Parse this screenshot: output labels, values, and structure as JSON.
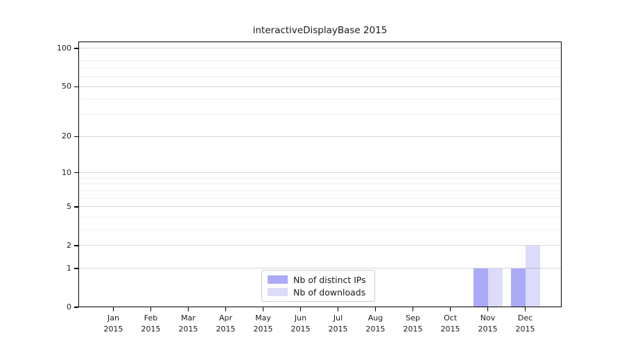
{
  "chart_data": {
    "type": "bar",
    "title": "interactiveDisplayBase 2015",
    "y_scale": "symlog(ln(1+x))",
    "y_axis": {
      "major_ticks": [
        0,
        1,
        2,
        5,
        10,
        20,
        50,
        100
      ],
      "minor_gridlines": [
        3,
        4,
        6,
        7,
        8,
        9,
        30,
        40,
        60,
        70,
        80,
        90
      ],
      "range": [
        0,
        113
      ],
      "grid": "on"
    },
    "x_axis": {
      "categories": [
        "Jan",
        "Feb",
        "Mar",
        "Apr",
        "May",
        "Jun",
        "Jul",
        "Aug",
        "Sep",
        "Oct",
        "Nov",
        "Dec"
      ],
      "year": "2015"
    },
    "series": [
      {
        "name": "Nb of distinct IPs",
        "color": "#aaaaf7",
        "values": [
          0,
          0,
          0,
          0,
          0,
          0,
          0,
          0,
          0,
          0,
          1,
          1
        ]
      },
      {
        "name": "Nb of downloads",
        "color": "#dcdcfa",
        "values": [
          0,
          0,
          0,
          0,
          0,
          0,
          0,
          0,
          0,
          0,
          1,
          2
        ]
      }
    ],
    "legend": {
      "position": "bottom-center"
    }
  },
  "colors": {
    "background": "#ffffff",
    "axis": "#000000",
    "text": "#1a1a1a",
    "grid_major": "#d9d9d9",
    "grid_minor": "#f1f1f1",
    "legend_border": "#cccccc"
  }
}
